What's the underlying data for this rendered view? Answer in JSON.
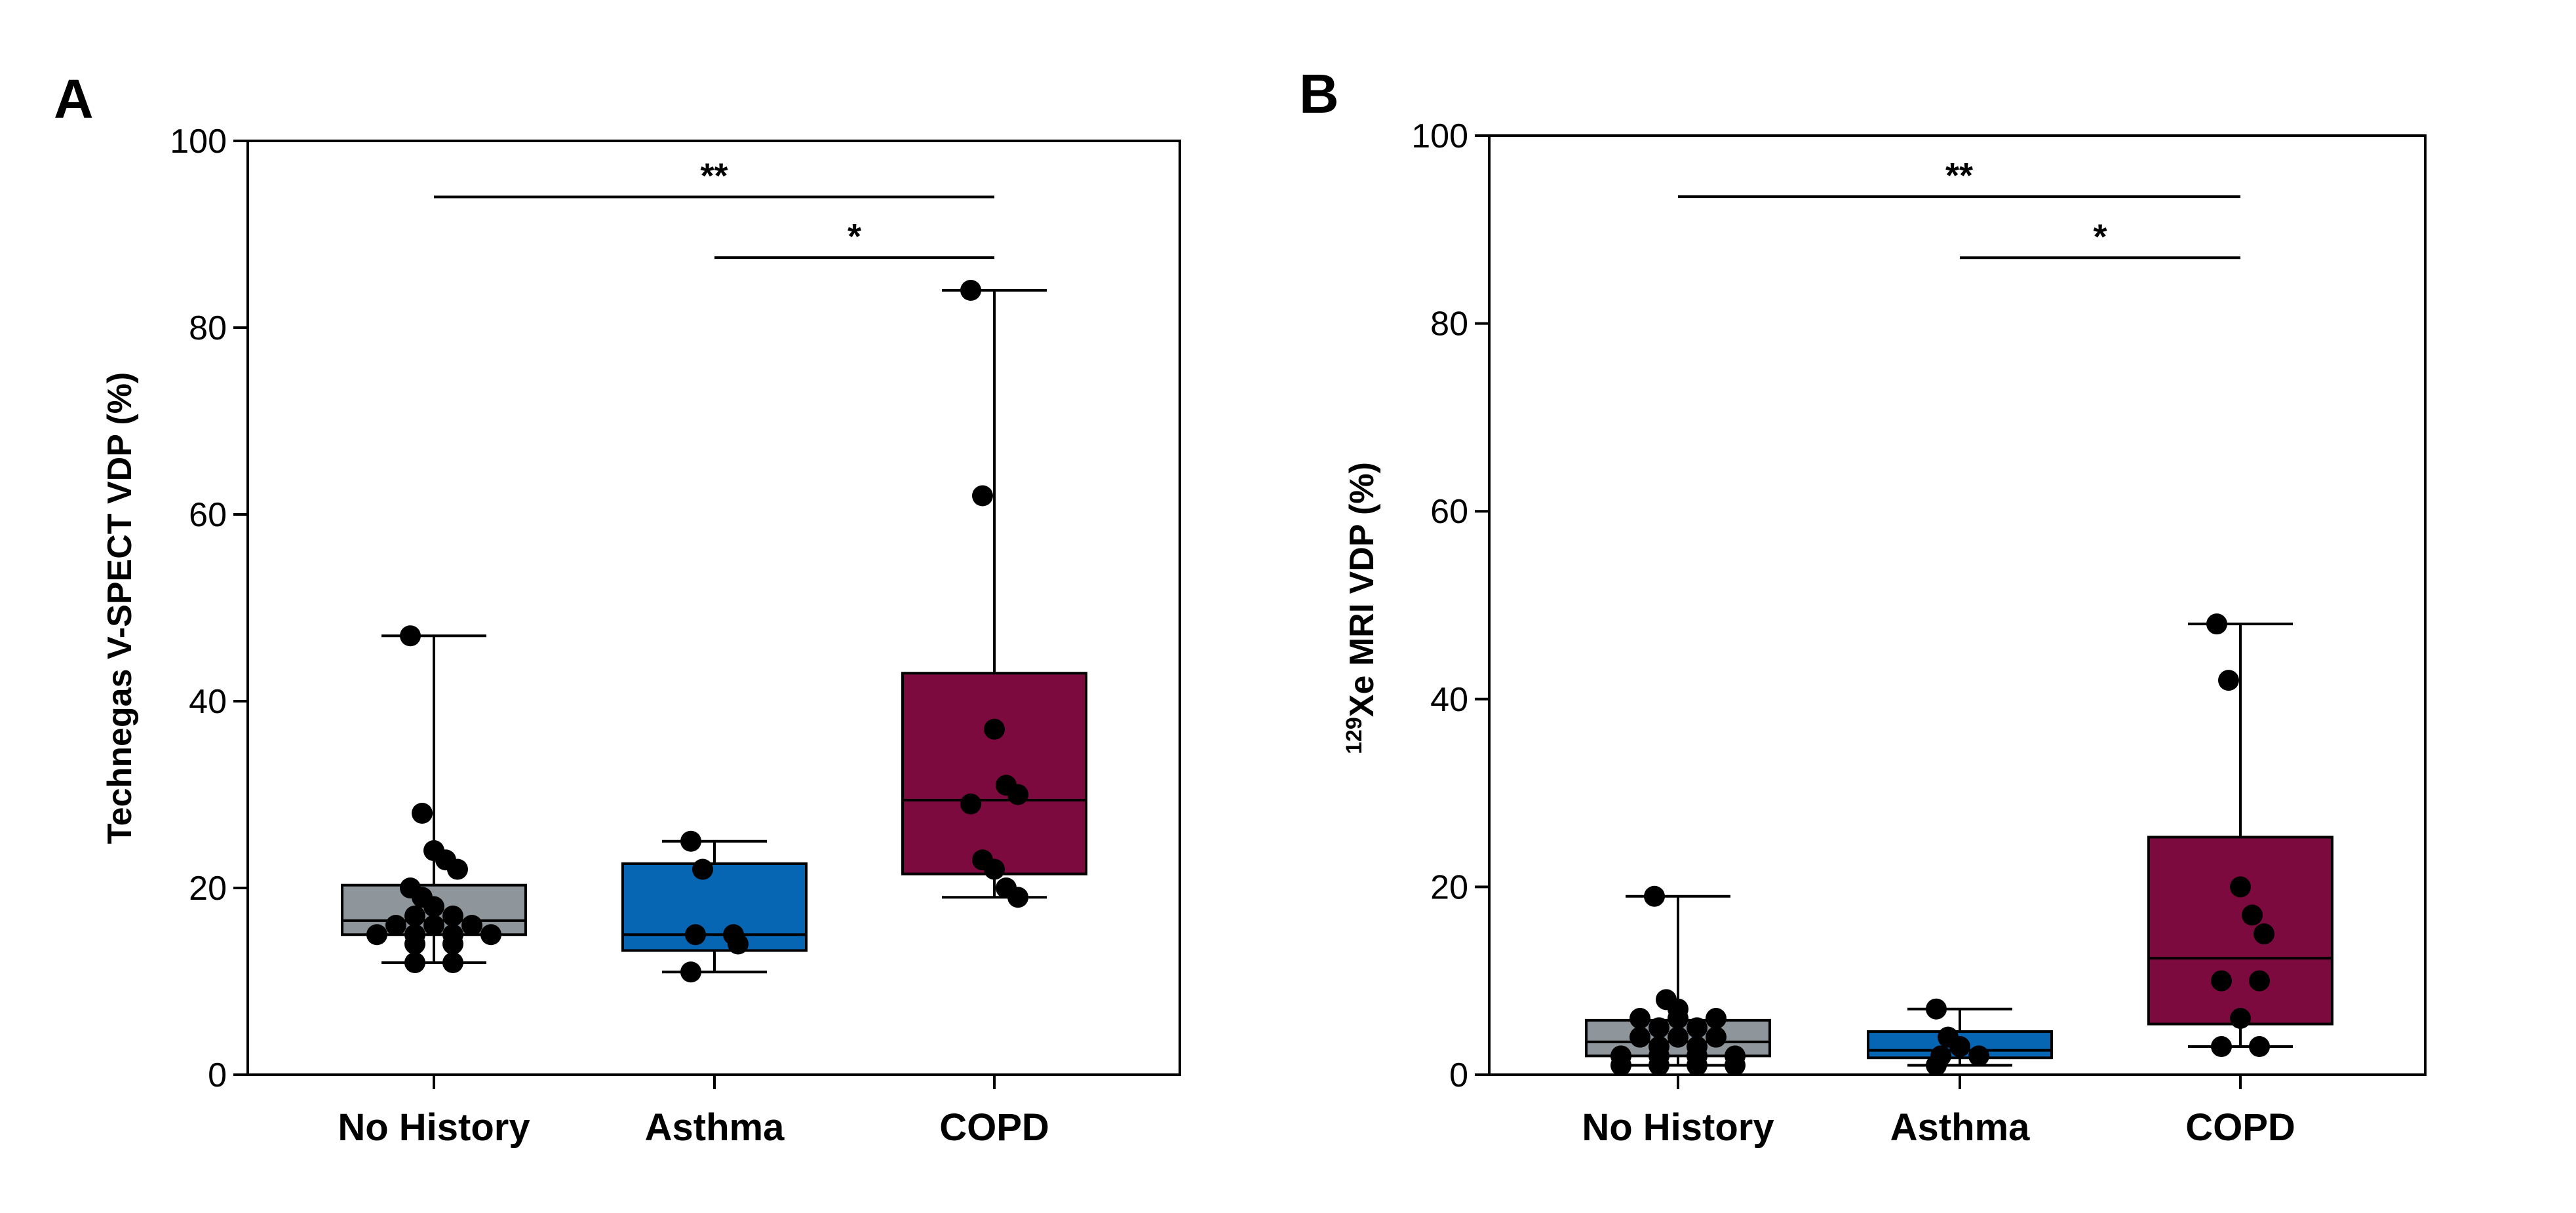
{
  "chart_data": [
    {
      "type": "box",
      "panel": "A",
      "ylabel": "Technegas V-SPECT VDP (%)",
      "ylim": [
        0,
        100
      ],
      "yticks": [
        0,
        20,
        40,
        60,
        80,
        100
      ],
      "categories": [
        "No History",
        "Asthma",
        "COPD"
      ],
      "colors": [
        "#8e959b",
        "#0766b3",
        "#7c0a3e"
      ],
      "boxes": [
        {
          "min": 12,
          "q1": 15,
          "median": 16.5,
          "q3": 20.3,
          "max": 47,
          "points": [
            47,
            28,
            24,
            23,
            22,
            20,
            19,
            18,
            17,
            17,
            16,
            16,
            16,
            15,
            15,
            15,
            15,
            14,
            14,
            12,
            12
          ]
        },
        {
          "min": 11,
          "q1": 13.3,
          "median": 15,
          "q3": 22.6,
          "max": 25,
          "points": [
            25,
            22,
            15,
            15,
            14,
            11
          ]
        },
        {
          "min": 19,
          "q1": 21.5,
          "median": 29.4,
          "q3": 43,
          "max": 84,
          "points": [
            84,
            62,
            37,
            31,
            30,
            29,
            23,
            22,
            20,
            19
          ]
        }
      ],
      "significance": [
        {
          "from": 0,
          "to": 2,
          "label": "**",
          "y": 94
        },
        {
          "from": 1,
          "to": 2,
          "label": "*",
          "y": 87.5
        }
      ]
    },
    {
      "type": "box",
      "panel": "B",
      "ylabel_sup": "129",
      "ylabel": "Xe MRI VDP (%)",
      "ylim": [
        0,
        100
      ],
      "yticks": [
        0,
        20,
        40,
        60,
        80,
        100
      ],
      "categories": [
        "No History",
        "Asthma",
        "COPD"
      ],
      "colors": [
        "#8e959b",
        "#0766b3",
        "#7c0a3e"
      ],
      "boxes": [
        {
          "min": 1,
          "q1": 2,
          "median": 3.5,
          "q3": 5.8,
          "max": 19,
          "points": [
            19,
            8,
            7,
            6,
            6,
            6,
            5,
            5,
            4,
            4,
            4,
            3,
            3,
            2,
            2,
            2,
            2,
            1,
            1,
            1,
            1
          ]
        },
        {
          "min": 1,
          "q1": 1.8,
          "median": 2.6,
          "q3": 4.6,
          "max": 7,
          "points": [
            7,
            4,
            3,
            2,
            2,
            1
          ]
        },
        {
          "min": 3,
          "q1": 5.4,
          "median": 12.4,
          "q3": 25.3,
          "max": 48,
          "points": [
            48,
            42,
            20,
            17,
            15,
            10,
            10,
            6,
            3,
            3
          ]
        }
      ],
      "significance": [
        {
          "from": 0,
          "to": 2,
          "label": "**",
          "y": 93.5
        },
        {
          "from": 1,
          "to": 2,
          "label": "*",
          "y": 87
        }
      ]
    }
  ]
}
